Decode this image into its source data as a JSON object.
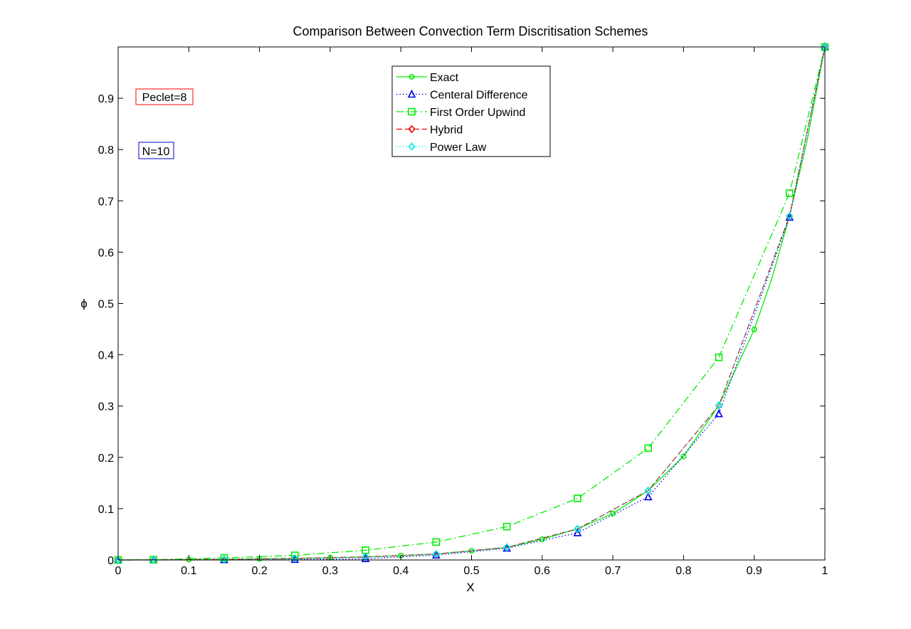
{
  "chart_data": {
    "type": "line",
    "title": "Comparison Between Convection Term Discritisation Schemes",
    "xlabel": "X",
    "ylabel": "ϕ",
    "xlim": [
      0,
      1
    ],
    "ylim": [
      0,
      1
    ],
    "xticks": [
      "0",
      "0.1",
      "0.2",
      "0.3",
      "0.4",
      "0.5",
      "0.6",
      "0.7",
      "0.8",
      "0.9",
      "1"
    ],
    "yticks": [
      "0",
      "0.1",
      "0.2",
      "0.3",
      "0.4",
      "0.5",
      "0.6",
      "0.7",
      "0.8",
      "0.9"
    ],
    "grid": false,
    "legend_position": "top-center",
    "annotations": [
      {
        "text": "Peclet=8",
        "border_color": "#ff0000"
      },
      {
        "text": "N=10",
        "border_color": "#0000cc"
      }
    ],
    "series": [
      {
        "name": "Exact",
        "color": "#00ee00",
        "style": "solid",
        "marker": "circle",
        "line_x": [
          0,
          0.05,
          0.1,
          0.15,
          0.2,
          0.25,
          0.3,
          0.35,
          0.4,
          0.45,
          0.5,
          0.55,
          0.6,
          0.65,
          0.7,
          0.75,
          0.8,
          0.85,
          0.9,
          0.925,
          0.95,
          0.975,
          1
        ],
        "line_y": [
          0,
          0.0003,
          0.0007,
          0.0012,
          0.0022,
          0.0031,
          0.0045,
          0.006,
          0.0085,
          0.0116,
          0.0179,
          0.0246,
          0.0404,
          0.0606,
          0.0905,
          0.1353,
          0.2019,
          0.3012,
          0.4493,
          0.5488,
          0.6703,
          0.8187,
          1
        ],
        "marker_x": [
          0,
          0.05,
          0.1,
          0.15,
          0.2,
          0.25,
          0.3,
          0.35,
          0.4,
          0.45,
          0.5,
          0.55,
          0.6,
          0.65,
          0.7,
          0.75,
          0.8,
          0.85,
          0.9,
          0.95,
          1
        ],
        "marker_y": [
          0,
          0.0003,
          0.0007,
          0.0012,
          0.0022,
          0.0031,
          0.0045,
          0.006,
          0.0085,
          0.0116,
          0.0179,
          0.0246,
          0.0404,
          0.0606,
          0.0905,
          0.1353,
          0.2019,
          0.3012,
          0.4493,
          0.6703,
          1
        ]
      },
      {
        "name": "Centeral Difference",
        "color": "#0000ee",
        "style": "dotted",
        "marker": "triangle",
        "x": [
          0,
          0.05,
          0.15,
          0.25,
          0.35,
          0.45,
          0.55,
          0.65,
          0.75,
          0.85,
          0.95,
          1
        ],
        "y": [
          0,
          0,
          0.0005,
          0.001,
          0.0025,
          0.0095,
          0.023,
          0.053,
          0.123,
          0.285,
          0.668,
          1
        ]
      },
      {
        "name": "First Order Upwind",
        "color": "#00ee00",
        "style": "dashdot",
        "marker": "square",
        "x": [
          0,
          0.05,
          0.15,
          0.25,
          0.35,
          0.45,
          0.55,
          0.65,
          0.75,
          0.85,
          0.95,
          1
        ],
        "y": [
          0,
          0.0005,
          0.004,
          0.009,
          0.019,
          0.035,
          0.065,
          0.12,
          0.218,
          0.395,
          0.715,
          1
        ]
      },
      {
        "name": "Hybrid",
        "color": "#ee0000",
        "style": "dashed",
        "marker": "diamond",
        "x": [
          0,
          0.05,
          0.15,
          0.25,
          0.35,
          0.45,
          0.55,
          0.65,
          0.75,
          0.85,
          0.95,
          1
        ],
        "y": [
          0,
          0.0003,
          0.0012,
          0.0031,
          0.006,
          0.0116,
          0.0246,
          0.0606,
          0.1353,
          0.3012,
          0.6703,
          1
        ]
      },
      {
        "name": "Power Law",
        "color": "#00eeee",
        "style": "dotted",
        "marker": "diamond",
        "x": [
          0,
          0.05,
          0.15,
          0.25,
          0.35,
          0.45,
          0.55,
          0.65,
          0.75,
          0.85,
          0.95,
          1
        ],
        "y": [
          0,
          0.0003,
          0.0012,
          0.0031,
          0.006,
          0.0116,
          0.0246,
          0.0606,
          0.1353,
          0.3012,
          0.6703,
          1
        ]
      }
    ]
  }
}
